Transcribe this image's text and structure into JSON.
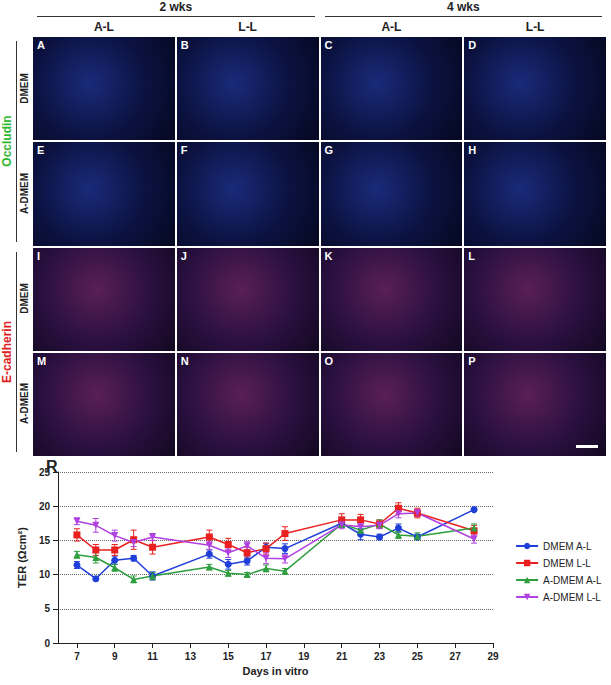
{
  "figure": {
    "column_groups": [
      {
        "label": "2 wks",
        "columns": [
          "A-L",
          "L-L"
        ]
      },
      {
        "label": "4 wks",
        "columns": [
          "A-L",
          "L-L"
        ]
      }
    ],
    "row_groups": [
      {
        "label": "Occludin",
        "color": "#2eb82e",
        "rows": [
          {
            "label": "DMEM",
            "panels": [
              "A",
              "B",
              "C",
              "D"
            ]
          },
          {
            "label": "A-DMEM",
            "panels": [
              "E",
              "F",
              "G",
              "H"
            ]
          }
        ]
      },
      {
        "label": "E-cadherin",
        "color": "#e02020",
        "rows": [
          {
            "label": "DMEM",
            "panels": [
              "I",
              "J",
              "K",
              "L"
            ]
          },
          {
            "label": "A-DMEM",
            "panels": [
              "M",
              "N",
              "O",
              "P"
            ]
          }
        ]
      }
    ],
    "chart_label": "R"
  },
  "chart_data": {
    "type": "line",
    "x_label": "Days in vitro",
    "y_label": "TER (Ωcm²)",
    "x": [
      7,
      8,
      9,
      10,
      11,
      14,
      15,
      16,
      17,
      18,
      21,
      22,
      23,
      24,
      25,
      28
    ],
    "series": [
      {
        "name": "DMEM A-L",
        "color": "#1f3fd8",
        "marker": "circle",
        "values": [
          11.4,
          9.4,
          12.1,
          12.4,
          9.8,
          13.0,
          11.5,
          12.0,
          14.0,
          13.8,
          17.5,
          15.9,
          15.5,
          16.8,
          15.5,
          19.5
        ],
        "errors": [
          0.5,
          0.3,
          0.6,
          0.4,
          0.6,
          0.6,
          0.7,
          0.6,
          0.6,
          0.7,
          0.6,
          0.8,
          0.4,
          0.6,
          0.4,
          0.2
        ]
      },
      {
        "name": "DMEM L-L",
        "color": "#e8201f",
        "marker": "square",
        "values": [
          15.8,
          13.6,
          13.6,
          15.1,
          14.0,
          15.5,
          14.4,
          13.2,
          13.8,
          16.0,
          18.0,
          18.0,
          17.4,
          19.7,
          19.0,
          16.4
        ],
        "errors": [
          0.9,
          0.8,
          0.8,
          1.4,
          1.0,
          1.0,
          0.9,
          0.8,
          0.8,
          1.0,
          0.9,
          0.8,
          0.6,
          0.8,
          0.7,
          0.8
        ]
      },
      {
        "name": "A-DMEM A-L",
        "color": "#2e9e3e",
        "marker": "triangle",
        "values": [
          12.9,
          12.5,
          11.0,
          9.3,
          9.8,
          11.1,
          10.2,
          10.0,
          10.9,
          10.5,
          17.4,
          16.5,
          17.4,
          15.8,
          15.6,
          16.8
        ],
        "errors": [
          0.5,
          0.8,
          0.5,
          0.5,
          0.5,
          0.4,
          0.4,
          0.3,
          0.5,
          0.4,
          0.5,
          0.6,
          0.6,
          0.5,
          0.5,
          0.6
        ]
      },
      {
        "name": "A-DMEM L-L",
        "color": "#b040e0",
        "marker": "triangle_down",
        "values": [
          17.8,
          17.2,
          15.7,
          14.7,
          15.5,
          14.3,
          13.2,
          14.2,
          12.4,
          12.3,
          17.3,
          17.0,
          17.2,
          18.9,
          19.0,
          15.2
        ],
        "errors": [
          0.5,
          1.0,
          0.8,
          0.6,
          0.5,
          0.6,
          0.7,
          0.6,
          0.8,
          0.6,
          0.6,
          0.6,
          0.5,
          0.6,
          0.5,
          0.6
        ]
      }
    ],
    "xlim": [
      6,
      29
    ],
    "xticks": [
      7,
      9,
      11,
      13,
      15,
      17,
      19,
      21,
      23,
      25,
      27,
      29
    ],
    "ylim": [
      0,
      25
    ],
    "yticks": [
      0,
      5,
      10,
      15,
      20,
      25
    ],
    "grid": true,
    "legend": "right"
  }
}
